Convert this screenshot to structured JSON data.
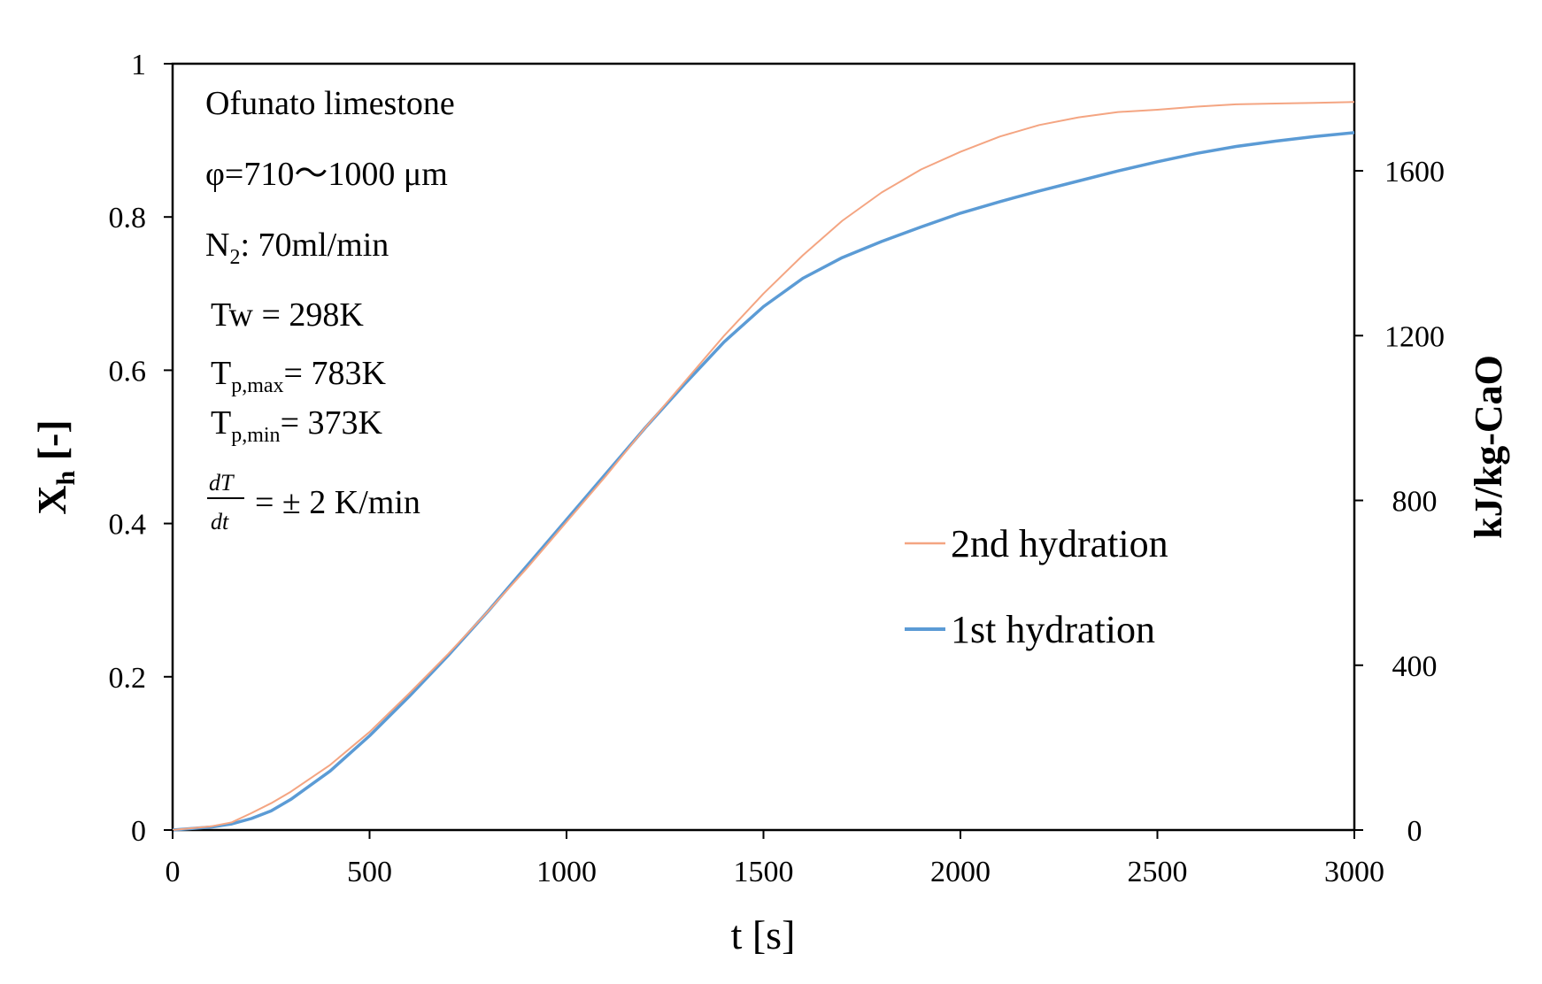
{
  "chart_data": {
    "type": "line",
    "title": "",
    "xlabel": "t [s]",
    "ylabel_main": "X",
    "ylabel_sub": "h",
    "ylabel_suffix": " [-]",
    "y2label": "kJ/kg-CaO",
    "xlim": [
      0,
      3000
    ],
    "ylim": [
      0,
      1
    ],
    "y2lim": [
      0,
      1860
    ],
    "xticks": [
      0,
      500,
      1000,
      1500,
      2000,
      2500,
      3000
    ],
    "yticks": [
      0,
      0.2,
      0.4,
      0.6,
      0.8,
      1
    ],
    "ytick_labels": [
      "0",
      "0.2",
      "0.4",
      "0.6",
      "0.8",
      "1"
    ],
    "y2ticks": [
      0,
      400,
      800,
      1200,
      1600
    ],
    "grid": false,
    "legend_position": "center-right",
    "series": [
      {
        "name": "2nd  hydration",
        "color": "#f4a582",
        "x": [
          0,
          100,
          150,
          200,
          250,
          300,
          400,
          500,
          600,
          700,
          800,
          900,
          1000,
          1100,
          1200,
          1300,
          1400,
          1500,
          1600,
          1700,
          1800,
          1900,
          2000,
          2100,
          2200,
          2300,
          2400,
          2500,
          2600,
          2700,
          2800,
          2900,
          3000
        ],
        "y": [
          0.0,
          0.005,
          0.01,
          0.022,
          0.035,
          0.05,
          0.085,
          0.128,
          0.178,
          0.23,
          0.285,
          0.342,
          0.402,
          0.462,
          0.525,
          0.585,
          0.645,
          0.7,
          0.75,
          0.795,
          0.832,
          0.862,
          0.885,
          0.905,
          0.92,
          0.93,
          0.937,
          0.94,
          0.944,
          0.947,
          0.948,
          0.949,
          0.95
        ]
      },
      {
        "name": "1st hydration",
        "color": "#5b9bd5",
        "x": [
          0,
          100,
          150,
          200,
          250,
          300,
          400,
          500,
          600,
          700,
          800,
          900,
          1000,
          1100,
          1200,
          1300,
          1400,
          1500,
          1600,
          1700,
          1800,
          1900,
          2000,
          2100,
          2200,
          2300,
          2400,
          2500,
          2600,
          2700,
          2800,
          2900,
          3000
        ],
        "y": [
          0.0,
          0.004,
          0.008,
          0.015,
          0.025,
          0.04,
          0.077,
          0.123,
          0.174,
          0.228,
          0.285,
          0.345,
          0.405,
          0.465,
          0.525,
          0.582,
          0.637,
          0.683,
          0.72,
          0.747,
          0.768,
          0.787,
          0.805,
          0.82,
          0.834,
          0.847,
          0.86,
          0.872,
          0.883,
          0.892,
          0.899,
          0.905,
          0.91
        ]
      }
    ],
    "annotations": {
      "material": "Ofunato limestone",
      "particle_size": "φ=710～1000 μm",
      "gas_main": "N",
      "gas_sub": "2",
      "gas_rest": ": 70ml/min",
      "tw": "Tw = 298K",
      "tpmax_main": "T",
      "tpmax_sub": "p,max",
      "tpmax_rest": "= 783K",
      "tpmin_main": "T",
      "tpmin_sub": "p,min",
      "tpmin_rest": "= 373K",
      "rate_num": "dT",
      "rate_den": "dt",
      "rate_rest": "= ± 2 K/min"
    }
  }
}
